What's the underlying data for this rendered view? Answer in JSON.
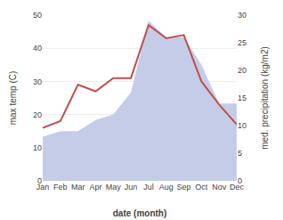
{
  "chart_data": {
    "type": "line",
    "xlabel": "date (month)",
    "ylabel": "max temp (C)",
    "y2label": "med. precipitation (kg/m2)",
    "categories": [
      "Jan",
      "Feb",
      "Mar",
      "Apr",
      "May",
      "Jun",
      "Jul",
      "Aug",
      "Sep",
      "Oct",
      "Nov",
      "Dec"
    ],
    "series": [
      {
        "type": "area",
        "color": "#c5cce8",
        "axis": "y2",
        "values": [
          8,
          9,
          9,
          11,
          12,
          16,
          29,
          26,
          26,
          21,
          14,
          14
        ]
      },
      {
        "type": "line",
        "color": "#c0504d",
        "values": [
          16,
          18,
          29,
          27,
          31,
          31,
          47,
          43,
          44,
          30,
          23,
          17
        ]
      }
    ],
    "ylim": [
      0,
      50
    ],
    "yticks": [
      0,
      10,
      20,
      30,
      40,
      50
    ],
    "y2lim": [
      0,
      30
    ],
    "y2ticks": [
      0,
      5,
      10,
      15,
      20,
      25,
      30
    ],
    "grid": true
  }
}
